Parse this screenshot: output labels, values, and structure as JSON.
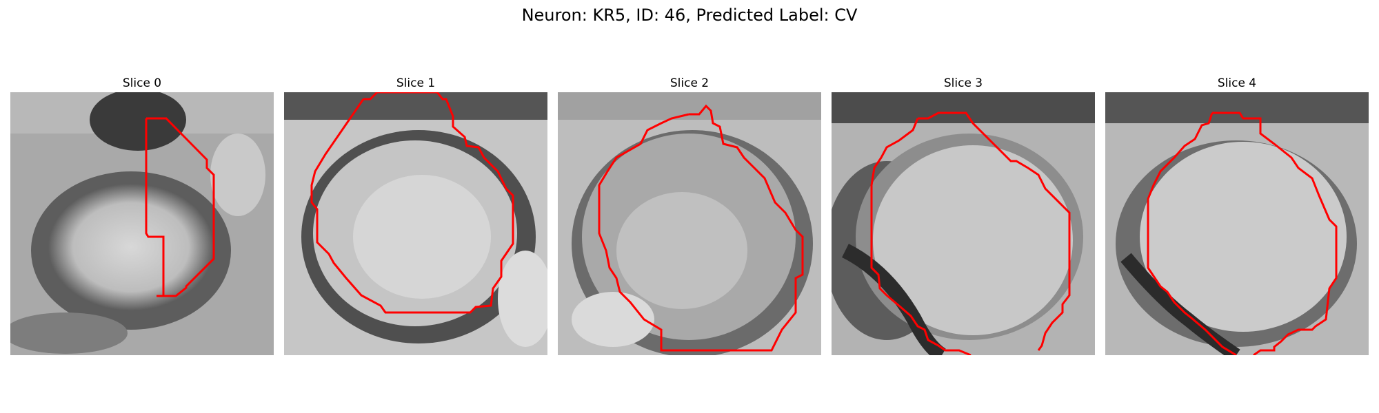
{
  "figure": {
    "title": "Neuron: KR5, ID: 46, Predicted Label: CV"
  },
  "slices": [
    {
      "title": "Slice 0"
    },
    {
      "title": "Slice 1"
    },
    {
      "title": "Slice 2"
    },
    {
      "title": "Slice 3"
    },
    {
      "title": "Slice 4"
    }
  ],
  "contour_color": "#ff0000",
  "colormap": "gray"
}
